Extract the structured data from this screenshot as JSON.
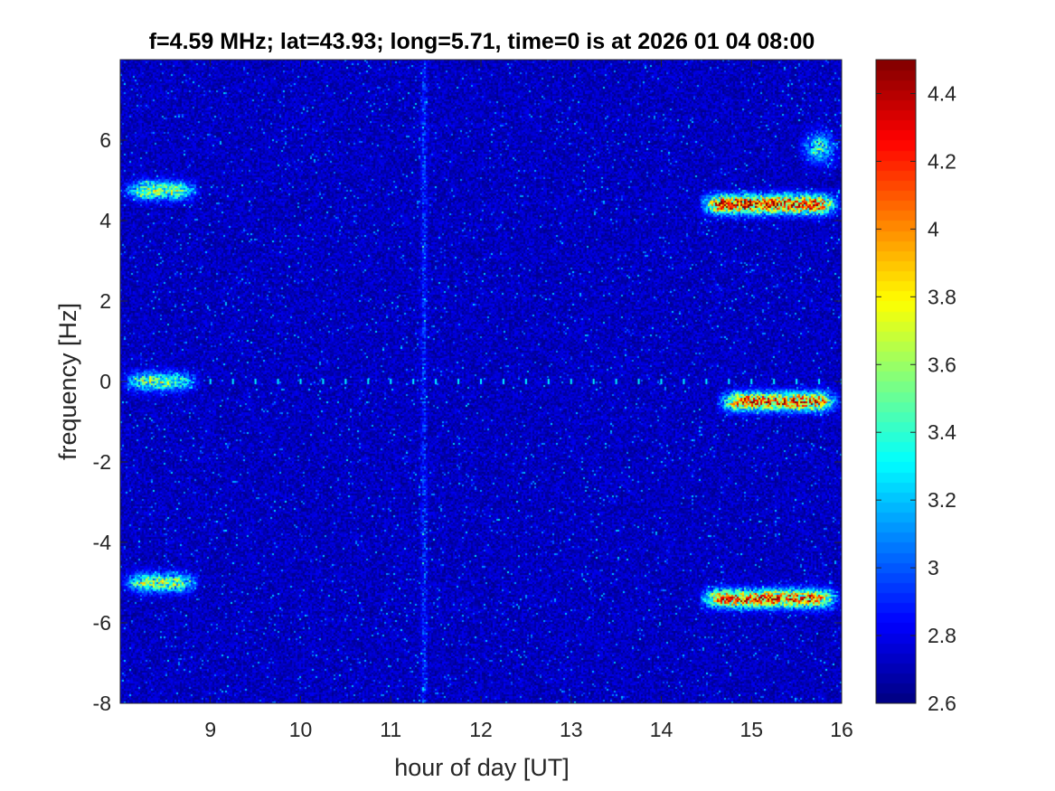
{
  "chart_data": {
    "type": "heatmap",
    "title": "f=4.59 MHz;  lat=43.93; long=5.71, time=0 is at 2026 01 04 08:00",
    "xlabel": "hour of day [UT]",
    "ylabel": "frequency [Hz]",
    "xlim": [
      8,
      16
    ],
    "ylim": [
      -8,
      8
    ],
    "xticks": [
      9,
      10,
      11,
      12,
      13,
      14,
      15,
      16
    ],
    "xtick_labels": [
      "9",
      "10",
      "11",
      "12",
      "13",
      "14",
      "15",
      "16"
    ],
    "yticks": [
      -8,
      -6,
      -4,
      -2,
      0,
      2,
      4,
      6
    ],
    "ytick_labels": [
      "-8",
      "-6",
      "-4",
      "-2",
      "0",
      "2",
      "4",
      "6"
    ],
    "colormap": "jet",
    "clim": [
      2.6,
      4.5
    ],
    "colorbar_ticks": [
      2.6,
      2.8,
      3,
      3.2,
      3.4,
      3.6,
      3.8,
      4,
      4.2,
      4.4
    ],
    "colorbar_tick_labels": [
      "2.6",
      "2.8",
      "3",
      "3.2",
      "3.4",
      "3.6",
      "3.8",
      "4",
      "4.2",
      "4.4"
    ],
    "background_level": 2.72,
    "features": [
      {
        "kind": "band",
        "x_start": 8.0,
        "x_end": 8.9,
        "y": 4.75,
        "peak": 3.7
      },
      {
        "kind": "band",
        "x_start": 8.0,
        "x_end": 8.9,
        "y": 0.0,
        "peak": 3.6
      },
      {
        "kind": "band",
        "x_start": 8.0,
        "x_end": 8.9,
        "y": -5.0,
        "peak": 3.7
      },
      {
        "kind": "band",
        "x_start": 14.4,
        "x_end": 16.0,
        "y": 4.4,
        "peak": 4.4
      },
      {
        "kind": "band",
        "x_start": 14.6,
        "x_end": 16.0,
        "y": -0.5,
        "peak": 4.2
      },
      {
        "kind": "band",
        "x_start": 14.4,
        "x_end": 16.0,
        "y": -5.4,
        "peak": 4.2
      },
      {
        "kind": "patch",
        "x_start": 15.5,
        "x_end": 16.0,
        "y": 5.8,
        "peak": 3.5
      },
      {
        "kind": "vertical_line",
        "x": 11.37,
        "peak": 3.1
      },
      {
        "kind": "carrier_dots",
        "y": 0.0,
        "x_start": 8.5,
        "x_end": 16.0,
        "step": 0.25,
        "peak": 3.3
      }
    ]
  }
}
